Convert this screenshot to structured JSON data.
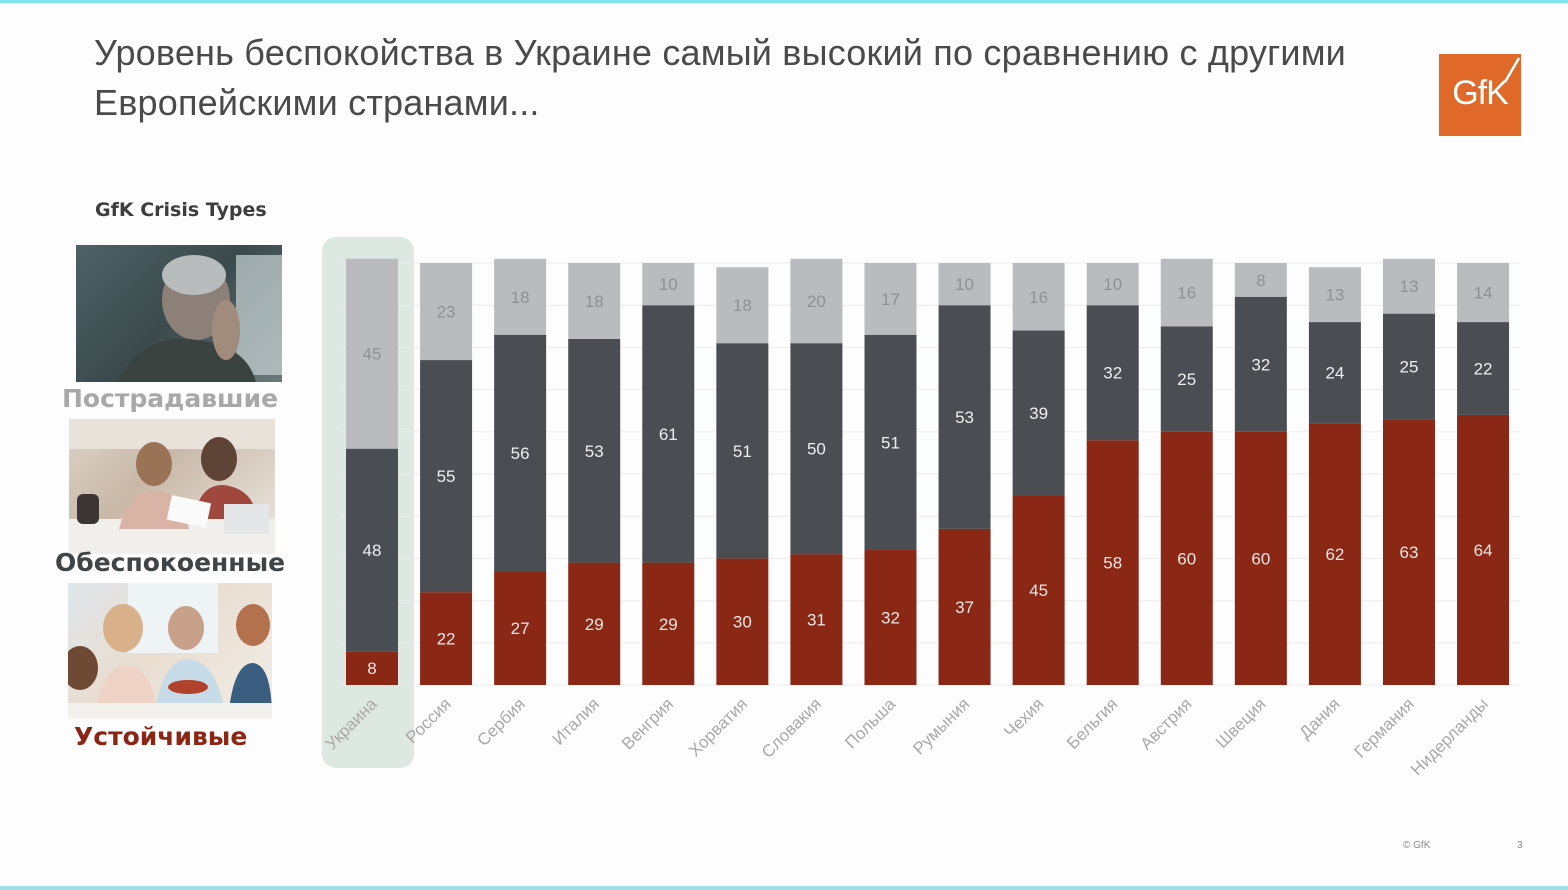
{
  "title": "Уровень беспокойства в Украине самый высокий по сравнению с другими Европейскими странами...",
  "logo": {
    "text": "GfK",
    "color": "#e0692a"
  },
  "legend": {
    "title": "GfK Crisis Types",
    "types": [
      {
        "label": "Пострадавшие",
        "color": "#a8a8a8",
        "image": "stressed-man-photo"
      },
      {
        "label": "Обеспокоенные",
        "color": "#3f4447",
        "image": "worried-couple-photo"
      },
      {
        "label": "Устойчивые",
        "color": "#8b2515",
        "image": "happy-family-photo"
      }
    ]
  },
  "footer": {
    "copyright": "© GfK",
    "page": "3"
  },
  "chart_data": {
    "type": "bar",
    "stacked": true,
    "orientation": "vertical",
    "ylim": [
      0,
      100
    ],
    "grid": true,
    "gridline_step": 10,
    "highlighted_category": "Украина",
    "categories": [
      "Украина",
      "Россия",
      "Сербия",
      "Италия",
      "Венгрия",
      "Хорватия",
      "Словакия",
      "Польша",
      "Румыния",
      "Чехия",
      "Бельгия",
      "Австрия",
      "Швеция",
      "Дания",
      "Германия",
      "Нидерланды"
    ],
    "series": [
      {
        "name": "Устойчивые",
        "color": "#8a2715",
        "label_color": "#f2e6e3",
        "values": [
          8,
          22,
          27,
          29,
          29,
          30,
          31,
          32,
          37,
          45,
          58,
          60,
          60,
          62,
          63,
          64
        ]
      },
      {
        "name": "Обеспокоенные",
        "color": "#4a4e52",
        "label_color": "#eeeeee",
        "values": [
          48,
          55,
          56,
          53,
          61,
          51,
          50,
          51,
          53,
          39,
          32,
          25,
          32,
          24,
          25,
          22
        ]
      },
      {
        "name": "Пострадавшие",
        "color": "#b9bbbe",
        "label_color": "#8e9094",
        "values": [
          45,
          23,
          18,
          18,
          10,
          18,
          20,
          17,
          10,
          16,
          10,
          16,
          8,
          13,
          13,
          14
        ]
      }
    ]
  }
}
